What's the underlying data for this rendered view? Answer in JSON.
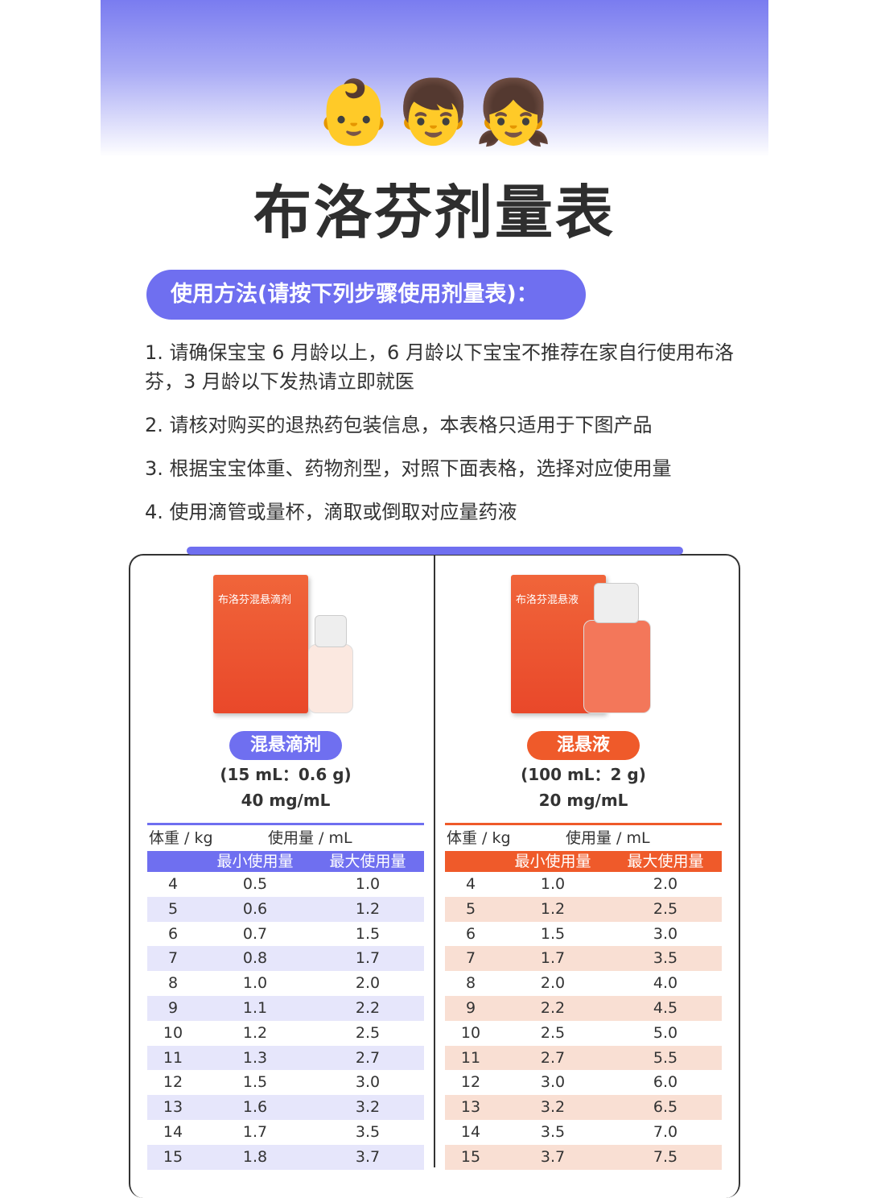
{
  "header": {
    "faces": "👶👦👧",
    "title": "布洛芬剂量表"
  },
  "usage": {
    "heading": "使用方法(请按下列步骤使用剂量表)：",
    "steps": [
      "1. 请确保宝宝 6 月龄以上，6 月龄以下宝宝不推荐在家自行使用布洛芬，3 月龄以下发热请立即就医",
      "2. 请核对购买的退热药包装信息，本表格只适用于下图产品",
      "3. 根据宝宝体重、药物剂型，对照下面表格，选择对应使用量",
      "4. 使用滴管或量杯，滴取或倒取对应量药液"
    ]
  },
  "colors": {
    "purple": "#6f6ff0",
    "purple_row": "#e6e6fb",
    "orange": "#ef5a2a",
    "orange_row": "#f9dfd3"
  },
  "products": [
    {
      "package_text": "布洛芬混悬滴剂",
      "form": "混悬滴剂",
      "spec_line1": "(15 mL：0.6 g)",
      "spec_line2": "40 mg/mL",
      "table": {
        "weight_header": "体重 / kg",
        "dose_header": "使用量 / mL",
        "min_header": "最小使用量",
        "max_header": "最大使用量",
        "rows": [
          [
            "4",
            "0.5",
            "1.0"
          ],
          [
            "5",
            "0.6",
            "1.2"
          ],
          [
            "6",
            "0.7",
            "1.5"
          ],
          [
            "7",
            "0.8",
            "1.7"
          ],
          [
            "8",
            "1.0",
            "2.0"
          ],
          [
            "9",
            "1.1",
            "2.2"
          ],
          [
            "10",
            "1.2",
            "2.5"
          ],
          [
            "11",
            "1.3",
            "2.7"
          ],
          [
            "12",
            "1.5",
            "3.0"
          ],
          [
            "13",
            "1.6",
            "3.2"
          ],
          [
            "14",
            "1.7",
            "3.5"
          ],
          [
            "15",
            "1.8",
            "3.7"
          ]
        ]
      }
    },
    {
      "package_text": "布洛芬混悬液",
      "form": "混悬液",
      "spec_line1": "(100 mL：2 g)",
      "spec_line2": "20 mg/mL",
      "table": {
        "weight_header": "体重 / kg",
        "dose_header": "使用量 / mL",
        "min_header": "最小使用量",
        "max_header": "最大使用量",
        "rows": [
          [
            "4",
            "1.0",
            "2.0"
          ],
          [
            "5",
            "1.2",
            "2.5"
          ],
          [
            "6",
            "1.5",
            "3.0"
          ],
          [
            "7",
            "1.7",
            "3.5"
          ],
          [
            "8",
            "2.0",
            "4.0"
          ],
          [
            "9",
            "2.2",
            "4.5"
          ],
          [
            "10",
            "2.5",
            "5.0"
          ],
          [
            "11",
            "2.7",
            "5.5"
          ],
          [
            "12",
            "3.0",
            "6.0"
          ],
          [
            "13",
            "3.2",
            "6.5"
          ],
          [
            "14",
            "3.5",
            "7.0"
          ],
          [
            "15",
            "3.7",
            "7.5"
          ]
        ]
      }
    }
  ]
}
